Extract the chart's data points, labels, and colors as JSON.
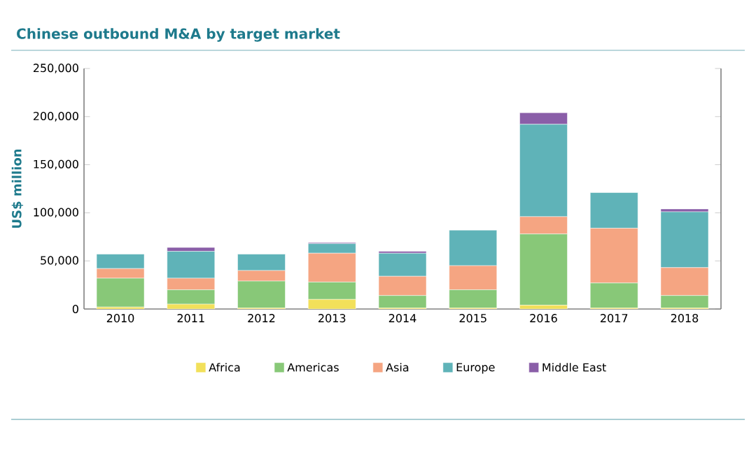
{
  "chart_data": {
    "type": "bar",
    "stacked": true,
    "title": "Chinese outbound M&A by target market",
    "ylabel": "US$ million",
    "categories": [
      "2010",
      "2011",
      "2012",
      "2013",
      "2014",
      "2015",
      "2016",
      "2017",
      "2018"
    ],
    "series": [
      {
        "name": "Africa",
        "color": "#f2e05a",
        "values": [
          2000,
          5000,
          1000,
          10000,
          1000,
          1000,
          4000,
          1000,
          1000
        ]
      },
      {
        "name": "Americas",
        "color": "#88c878",
        "values": [
          30000,
          15000,
          28000,
          18000,
          13000,
          19000,
          74000,
          26000,
          13000
        ]
      },
      {
        "name": "Asia",
        "color": "#f5a582",
        "values": [
          10000,
          12000,
          11000,
          30000,
          20000,
          25000,
          18000,
          57000,
          29000
        ]
      },
      {
        "name": "Europe",
        "color": "#5fb3b8",
        "values": [
          15000,
          28000,
          17000,
          10000,
          24000,
          37000,
          96000,
          37000,
          58000
        ]
      },
      {
        "name": "Middle East",
        "color": "#8a5ea8",
        "values": [
          0,
          4000,
          0,
          1000,
          2000,
          0,
          12000,
          0,
          3000
        ]
      }
    ],
    "ylim": [
      0,
      250000
    ],
    "yticks": [
      {
        "value": 0,
        "label": "0"
      },
      {
        "value": 50000,
        "label": "50,000"
      },
      {
        "value": 100000,
        "label": "100,000"
      },
      {
        "value": 150000,
        "label": "150,000"
      },
      {
        "value": 200000,
        "label": "200,000"
      },
      {
        "value": 250000,
        "label": "250,000"
      }
    ],
    "legend": "bottom",
    "grid": false
  }
}
